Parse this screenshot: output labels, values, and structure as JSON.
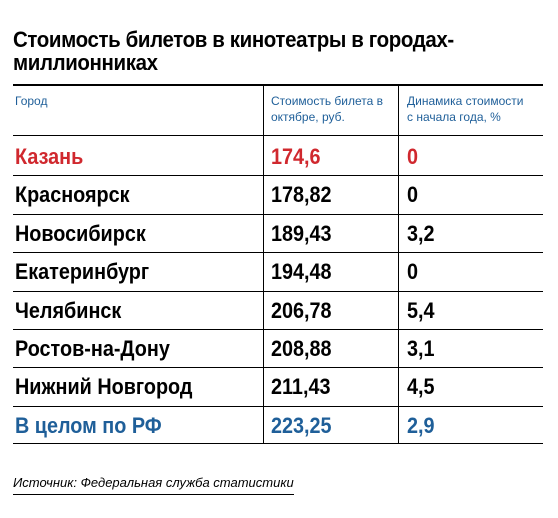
{
  "chart_data": {
    "type": "table",
    "title": "Стоимость билетов в кинотеатры в городах-миллионниках",
    "columns": [
      "Город",
      "Стоимость билета в октябре, руб.",
      "Динамика стоимости с начала года, %"
    ],
    "rows": [
      {
        "city": "Казань",
        "price": "174,6",
        "dynamics": "0",
        "highlight": "#d0282e"
      },
      {
        "city": "Красноярск",
        "price": "178,82",
        "dynamics": "0",
        "highlight": "#000000"
      },
      {
        "city": "Новосибирск",
        "price": "189,43",
        "dynamics": "3,2",
        "highlight": "#000000"
      },
      {
        "city": "Екатеринбург",
        "price": "194,48",
        "dynamics": "0",
        "highlight": "#000000"
      },
      {
        "city": "Челябинск",
        "price": "206,78",
        "dynamics": "5,4",
        "highlight": "#000000"
      },
      {
        "city": "Ростов-на-Дону",
        "price": "208,88",
        "dynamics": "3,1",
        "highlight": "#000000"
      },
      {
        "city": "Нижний Новгород",
        "price": "211,43",
        "dynamics": "4,5",
        "highlight": "#000000"
      },
      {
        "city": "В целом по РФ",
        "price": "223,25",
        "dynamics": "2,9",
        "highlight": "#1f5f99"
      }
    ]
  },
  "header": {
    "city_label": "Город",
    "price_label_line1": "Стоимость билета в",
    "price_label_line2": "октябре, руб.",
    "dynamics_label_line1": "Динамика стоимости",
    "dynamics_label_line2": "с начала года, %"
  },
  "source": "Источник: Федеральная служба статистики",
  "colors": {
    "accent_red": "#d0282e",
    "accent_blue": "#1f5f99",
    "text": "#000000"
  }
}
